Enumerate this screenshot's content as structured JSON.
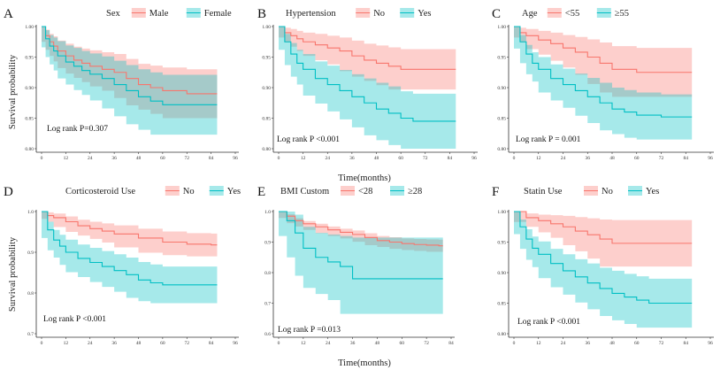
{
  "figure": {
    "xlabel": "Time(months)",
    "ylabel": "Survival probability"
  },
  "chart_data": [
    {
      "type": "line",
      "panel": "A",
      "legend_title": "Sex",
      "legend_placement": "top",
      "xlim": [
        0,
        96
      ],
      "xticks": [
        "0",
        "12",
        "24",
        "36",
        "48",
        "60",
        "72",
        "84",
        "96"
      ],
      "ylim": [
        0.8,
        1.0
      ],
      "yticks": [
        "0.80",
        "0.85",
        "0.90",
        "0.95",
        "1.00"
      ],
      "annotation": "Log rank P=0.307",
      "series": [
        {
          "name": "Male",
          "color": "#F8766D",
          "x": [
            0,
            2,
            4,
            6,
            8,
            12,
            16,
            20,
            24,
            30,
            36,
            42,
            48,
            54,
            60,
            72,
            84,
            87
          ],
          "y": [
            1.0,
            0.985,
            0.975,
            0.968,
            0.96,
            0.952,
            0.945,
            0.94,
            0.935,
            0.93,
            0.925,
            0.915,
            0.905,
            0.9,
            0.895,
            0.89,
            0.89,
            0.89
          ],
          "lower": [
            1.0,
            0.975,
            0.962,
            0.952,
            0.943,
            0.932,
            0.923,
            0.916,
            0.909,
            0.902,
            0.895,
            0.883,
            0.871,
            0.864,
            0.857,
            0.85,
            0.85,
            0.85
          ],
          "upper": [
            1.0,
            0.995,
            0.988,
            0.984,
            0.977,
            0.972,
            0.967,
            0.964,
            0.961,
            0.958,
            0.955,
            0.947,
            0.939,
            0.936,
            0.933,
            0.93,
            0.93,
            0.93
          ]
        },
        {
          "name": "Female",
          "color": "#00BFC4",
          "x": [
            0,
            2,
            4,
            6,
            8,
            12,
            16,
            20,
            24,
            30,
            36,
            42,
            48,
            54,
            60,
            72,
            84,
            87
          ],
          "y": [
            1.0,
            0.98,
            0.968,
            0.96,
            0.952,
            0.942,
            0.935,
            0.928,
            0.922,
            0.915,
            0.905,
            0.895,
            0.885,
            0.878,
            0.872,
            0.872,
            0.872,
            0.872
          ],
          "lower": [
            1.0,
            0.966,
            0.95,
            0.938,
            0.928,
            0.915,
            0.905,
            0.896,
            0.888,
            0.879,
            0.866,
            0.853,
            0.84,
            0.831,
            0.823,
            0.823,
            0.823,
            0.823
          ],
          "upper": [
            1.0,
            0.994,
            0.986,
            0.982,
            0.976,
            0.969,
            0.965,
            0.96,
            0.956,
            0.951,
            0.944,
            0.937,
            0.93,
            0.925,
            0.921,
            0.921,
            0.921,
            0.921
          ]
        }
      ]
    },
    {
      "type": "line",
      "panel": "B",
      "legend_title": "Hypertension",
      "legend_placement": "top",
      "xlim": [
        0,
        96
      ],
      "xticks": [
        "0",
        "12",
        "24",
        "36",
        "48",
        "60",
        "72",
        "84",
        "96"
      ],
      "ylim": [
        0.8,
        1.0
      ],
      "yticks": [
        "0.80",
        "0.85",
        "0.90",
        "0.95",
        "1.00"
      ],
      "annotation": "Log rank P <0.001",
      "series": [
        {
          "name": "No",
          "color": "#F8766D",
          "x": [
            0,
            3,
            6,
            9,
            12,
            18,
            24,
            30,
            36,
            42,
            48,
            54,
            60,
            72,
            84,
            87
          ],
          "y": [
            1.0,
            0.99,
            0.985,
            0.98,
            0.975,
            0.97,
            0.965,
            0.96,
            0.952,
            0.945,
            0.94,
            0.935,
            0.93,
            0.93,
            0.93,
            0.93
          ],
          "lower": [
            1.0,
            0.982,
            0.974,
            0.967,
            0.96,
            0.952,
            0.945,
            0.938,
            0.927,
            0.918,
            0.911,
            0.904,
            0.897,
            0.897,
            0.897,
            0.897
          ],
          "upper": [
            1.0,
            0.998,
            0.996,
            0.993,
            0.99,
            0.988,
            0.985,
            0.982,
            0.977,
            0.972,
            0.969,
            0.966,
            0.963,
            0.963,
            0.963,
            0.963
          ]
        },
        {
          "name": "Yes",
          "color": "#00BFC4",
          "x": [
            0,
            3,
            6,
            9,
            12,
            18,
            24,
            30,
            36,
            42,
            48,
            54,
            60,
            66,
            72,
            84,
            87
          ],
          "y": [
            1.0,
            0.975,
            0.955,
            0.94,
            0.93,
            0.915,
            0.905,
            0.895,
            0.885,
            0.875,
            0.865,
            0.858,
            0.85,
            0.845,
            0.845,
            0.845,
            0.845
          ],
          "lower": [
            1.0,
            0.962,
            0.937,
            0.918,
            0.905,
            0.887,
            0.874,
            0.861,
            0.848,
            0.835,
            0.822,
            0.814,
            0.806,
            0.8,
            0.8,
            0.8,
            0.8
          ],
          "upper": [
            1.0,
            0.988,
            0.973,
            0.962,
            0.955,
            0.943,
            0.936,
            0.929,
            0.922,
            0.915,
            0.908,
            0.902,
            0.894,
            0.89,
            0.89,
            0.89,
            0.89
          ]
        }
      ]
    },
    {
      "type": "line",
      "panel": "C",
      "legend_title": "Age",
      "legend_placement": "top",
      "xlim": [
        0,
        96
      ],
      "xticks": [
        "0",
        "12",
        "24",
        "36",
        "48",
        "60",
        "72",
        "84",
        "96"
      ],
      "ylim": [
        0.8,
        1.0
      ],
      "yticks": [
        "0.80",
        "0.85",
        "0.90",
        "0.95",
        "1.00"
      ],
      "annotation": "Log rank P =  0.001",
      "series": [
        {
          "name": "<55",
          "color": "#F8766D",
          "x": [
            0,
            3,
            6,
            12,
            18,
            24,
            30,
            36,
            42,
            48,
            60,
            72,
            84,
            87
          ],
          "y": [
            1.0,
            0.99,
            0.985,
            0.978,
            0.972,
            0.965,
            0.958,
            0.95,
            0.94,
            0.93,
            0.925,
            0.925,
            0.925,
            0.925
          ],
          "lower": [
            1.0,
            0.982,
            0.974,
            0.963,
            0.954,
            0.944,
            0.933,
            0.921,
            0.906,
            0.892,
            0.885,
            0.885,
            0.885,
            0.885
          ],
          "upper": [
            1.0,
            0.998,
            0.996,
            0.993,
            0.99,
            0.986,
            0.983,
            0.979,
            0.974,
            0.968,
            0.965,
            0.965,
            0.965,
            0.965
          ]
        },
        {
          "name": "≥55",
          "color": "#00BFC4",
          "x": [
            0,
            3,
            6,
            9,
            12,
            18,
            24,
            30,
            36,
            42,
            48,
            54,
            60,
            72,
            84,
            87
          ],
          "y": [
            1.0,
            0.975,
            0.955,
            0.94,
            0.93,
            0.915,
            0.905,
            0.895,
            0.885,
            0.875,
            0.865,
            0.86,
            0.855,
            0.852,
            0.852,
            0.852
          ],
          "lower": [
            1.0,
            0.964,
            0.94,
            0.922,
            0.91,
            0.892,
            0.879,
            0.867,
            0.854,
            0.842,
            0.83,
            0.824,
            0.818,
            0.815,
            0.815,
            0.815
          ],
          "upper": [
            1.0,
            0.986,
            0.97,
            0.958,
            0.95,
            0.938,
            0.931,
            0.923,
            0.916,
            0.908,
            0.9,
            0.896,
            0.892,
            0.889,
            0.889,
            0.889
          ]
        }
      ]
    },
    {
      "type": "line",
      "panel": "D",
      "legend_title": "Corticosteroid Use",
      "legend_placement": "top",
      "xlim": [
        0,
        96
      ],
      "xticks": [
        "0",
        "12",
        "24",
        "36",
        "48",
        "60",
        "72",
        "84",
        "96"
      ],
      "ylim": [
        0.7,
        1.0
      ],
      "yticks": [
        "0.7",
        "0.8",
        "0.9",
        "1.0"
      ],
      "annotation": "Log rank P <0.001",
      "series": [
        {
          "name": "No",
          "color": "#F8766D",
          "x": [
            0,
            3,
            6,
            12,
            18,
            24,
            30,
            36,
            48,
            60,
            72,
            84,
            87
          ],
          "y": [
            1.0,
            0.99,
            0.985,
            0.975,
            0.965,
            0.958,
            0.952,
            0.945,
            0.935,
            0.925,
            0.92,
            0.918,
            0.918
          ],
          "lower": [
            1.0,
            0.982,
            0.975,
            0.962,
            0.95,
            0.941,
            0.933,
            0.924,
            0.912,
            0.899,
            0.893,
            0.89,
            0.89
          ],
          "upper": [
            1.0,
            0.998,
            0.995,
            0.988,
            0.98,
            0.975,
            0.971,
            0.966,
            0.958,
            0.951,
            0.947,
            0.946,
            0.946
          ]
        },
        {
          "name": "Yes",
          "color": "#00BFC4",
          "x": [
            0,
            3,
            6,
            9,
            12,
            18,
            24,
            30,
            36,
            42,
            48,
            54,
            60,
            72,
            84,
            87
          ],
          "y": [
            1.0,
            0.955,
            0.93,
            0.915,
            0.9,
            0.885,
            0.875,
            0.865,
            0.855,
            0.845,
            0.832,
            0.825,
            0.82,
            0.82,
            0.82,
            0.82
          ],
          "lower": [
            1.0,
            0.935,
            0.905,
            0.887,
            0.869,
            0.851,
            0.839,
            0.827,
            0.815,
            0.803,
            0.788,
            0.78,
            0.775,
            0.775,
            0.775,
            0.775
          ],
          "upper": [
            1.0,
            0.975,
            0.955,
            0.943,
            0.931,
            0.919,
            0.911,
            0.903,
            0.895,
            0.887,
            0.876,
            0.87,
            0.865,
            0.865,
            0.865,
            0.865
          ]
        }
      ]
    },
    {
      "type": "line",
      "panel": "E",
      "legend_title": "BMI Custom",
      "legend_placement": "top",
      "xlim": [
        0,
        84
      ],
      "xticks": [
        "0",
        "12",
        "24",
        "36",
        "48",
        "60",
        "72",
        "84"
      ],
      "ylim": [
        0.6,
        1.0
      ],
      "yticks": [
        "0.6",
        "0.7",
        "0.8",
        "0.9",
        "1.0"
      ],
      "annotation": "Log rank P =0.013",
      "series": [
        {
          "name": "<28",
          "color": "#F8766D",
          "x": [
            0,
            4,
            8,
            12,
            18,
            24,
            30,
            36,
            42,
            48,
            54,
            60,
            66,
            72,
            78,
            80
          ],
          "y": [
            1.0,
            0.985,
            0.97,
            0.96,
            0.95,
            0.94,
            0.932,
            0.925,
            0.915,
            0.905,
            0.9,
            0.895,
            0.892,
            0.89,
            0.888,
            0.888
          ],
          "lower": [
            1.0,
            0.979,
            0.962,
            0.951,
            0.94,
            0.929,
            0.92,
            0.912,
            0.901,
            0.89,
            0.884,
            0.878,
            0.874,
            0.871,
            0.868,
            0.868
          ],
          "upper": [
            1.0,
            0.991,
            0.978,
            0.969,
            0.96,
            0.951,
            0.944,
            0.938,
            0.929,
            0.92,
            0.916,
            0.912,
            0.91,
            0.909,
            0.908,
            0.908
          ]
        },
        {
          "name": "≥28",
          "color": "#00BFC4",
          "x": [
            0,
            4,
            8,
            12,
            18,
            24,
            30,
            36,
            48,
            60,
            72,
            80
          ],
          "y": [
            1.0,
            0.97,
            0.93,
            0.88,
            0.85,
            0.835,
            0.82,
            0.78,
            0.78,
            0.78,
            0.78,
            0.78
          ],
          "lower": [
            1.0,
            0.92,
            0.85,
            0.79,
            0.75,
            0.73,
            0.71,
            0.665,
            0.665,
            0.665,
            0.665,
            0.665
          ],
          "upper": [
            1.0,
            1.0,
            0.99,
            0.95,
            0.93,
            0.925,
            0.92,
            0.915,
            0.915,
            0.915,
            0.915,
            0.915
          ]
        }
      ]
    },
    {
      "type": "line",
      "panel": "F",
      "legend_title": "Statin Use",
      "legend_placement": "top",
      "xlim": [
        0,
        96
      ],
      "xticks": [
        "0",
        "12",
        "24",
        "36",
        "48",
        "60",
        "72",
        "84",
        "96"
      ],
      "ylim": [
        0.8,
        1.0
      ],
      "yticks": [
        "0.80",
        "0.85",
        "0.90",
        "0.95",
        "1.00"
      ],
      "annotation": "Log rank P <0.001",
      "series": [
        {
          "name": "No",
          "color": "#F8766D",
          "x": [
            0,
            6,
            12,
            18,
            24,
            30,
            36,
            42,
            48,
            60,
            72,
            84,
            87
          ],
          "y": [
            1.0,
            0.99,
            0.985,
            0.98,
            0.975,
            0.968,
            0.962,
            0.955,
            0.948,
            0.948,
            0.948,
            0.948,
            0.948
          ],
          "lower": [
            1.0,
            0.983,
            0.975,
            0.966,
            0.957,
            0.945,
            0.935,
            0.923,
            0.91,
            0.91,
            0.91,
            0.91,
            0.91
          ],
          "upper": [
            1.0,
            0.997,
            0.995,
            0.994,
            0.993,
            0.991,
            0.989,
            0.987,
            0.986,
            0.986,
            0.986,
            0.986,
            0.986
          ]
        },
        {
          "name": "Yes",
          "color": "#00BFC4",
          "x": [
            0,
            3,
            6,
            9,
            12,
            18,
            24,
            30,
            36,
            42,
            48,
            54,
            60,
            66,
            72,
            84,
            87
          ],
          "y": [
            1.0,
            0.975,
            0.955,
            0.94,
            0.93,
            0.915,
            0.903,
            0.893,
            0.883,
            0.874,
            0.866,
            0.86,
            0.855,
            0.85,
            0.85,
            0.85,
            0.85
          ],
          "lower": [
            1.0,
            0.963,
            0.939,
            0.921,
            0.909,
            0.891,
            0.876,
            0.864,
            0.851,
            0.84,
            0.829,
            0.822,
            0.816,
            0.81,
            0.81,
            0.81,
            0.81
          ],
          "upper": [
            1.0,
            0.987,
            0.971,
            0.959,
            0.951,
            0.939,
            0.93,
            0.922,
            0.915,
            0.908,
            0.903,
            0.898,
            0.894,
            0.89,
            0.89,
            0.89,
            0.89
          ]
        }
      ]
    }
  ]
}
